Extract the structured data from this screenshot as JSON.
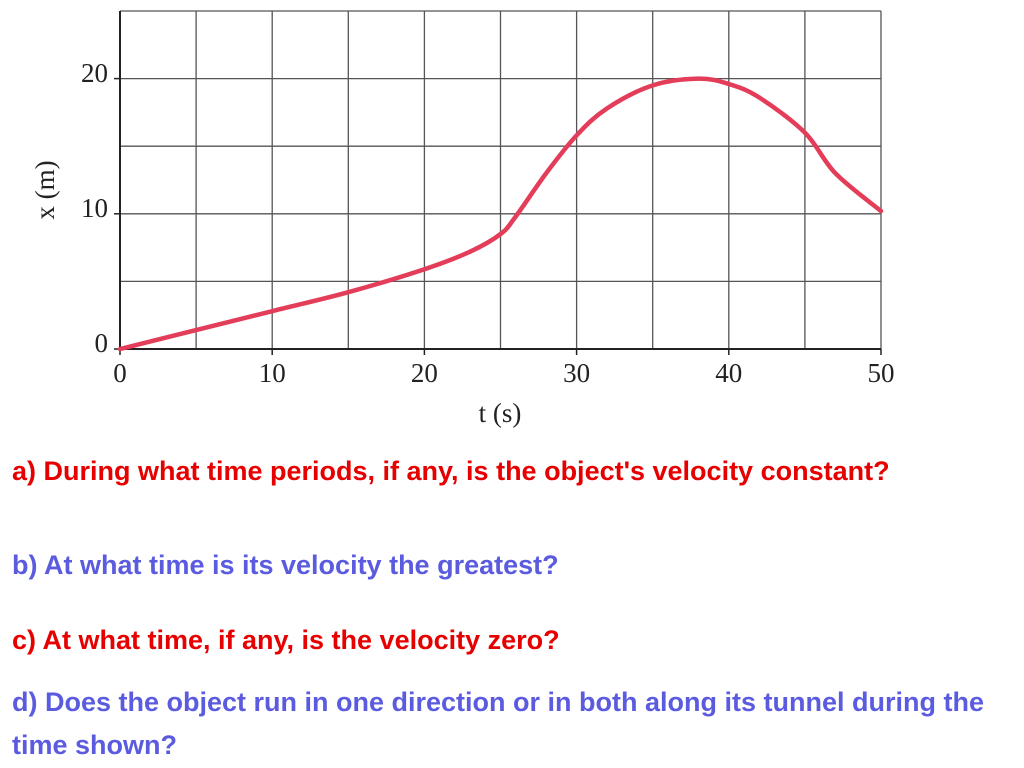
{
  "chart_data": {
    "type": "line",
    "ylabel": "x (m)",
    "xlabel": "t (s)",
    "x": [
      0,
      5,
      10,
      15,
      20,
      23,
      25,
      26,
      28,
      30,
      32,
      35,
      38,
      40,
      42,
      45,
      47,
      50
    ],
    "series": [
      {
        "color": "#e33d5a",
        "values": [
          0,
          1.4,
          2.8,
          4.2,
          5.9,
          7.2,
          8.5,
          9.8,
          13,
          15.8,
          17.8,
          19.5,
          20,
          19.6,
          18.6,
          16,
          13,
          10.2
        ]
      }
    ],
    "xlim": [
      0,
      50
    ],
    "ylim": [
      0,
      25
    ],
    "xticks": [
      0,
      10,
      20,
      30,
      40,
      50
    ],
    "yticks": [
      0,
      10,
      20
    ],
    "xgrid": [
      0,
      5,
      10,
      15,
      20,
      25,
      30,
      35,
      40,
      45,
      50
    ],
    "ygrid": [
      0,
      5,
      10,
      15,
      20,
      25
    ],
    "grid": true
  },
  "questions": [
    {
      "text": "a) During what time periods, if any, is the object's velocity constant?",
      "color": "#e60000"
    },
    {
      "text": "b) At what time is its velocity the greatest?",
      "color": "#5b5be0"
    },
    {
      "text": "c) At what time, if any, is the velocity zero?",
      "color": "#e60000"
    },
    {
      "text": "d) Does the object run in one direction or in both along its tunnel during the time shown?",
      "color": "#5b5be0"
    }
  ]
}
